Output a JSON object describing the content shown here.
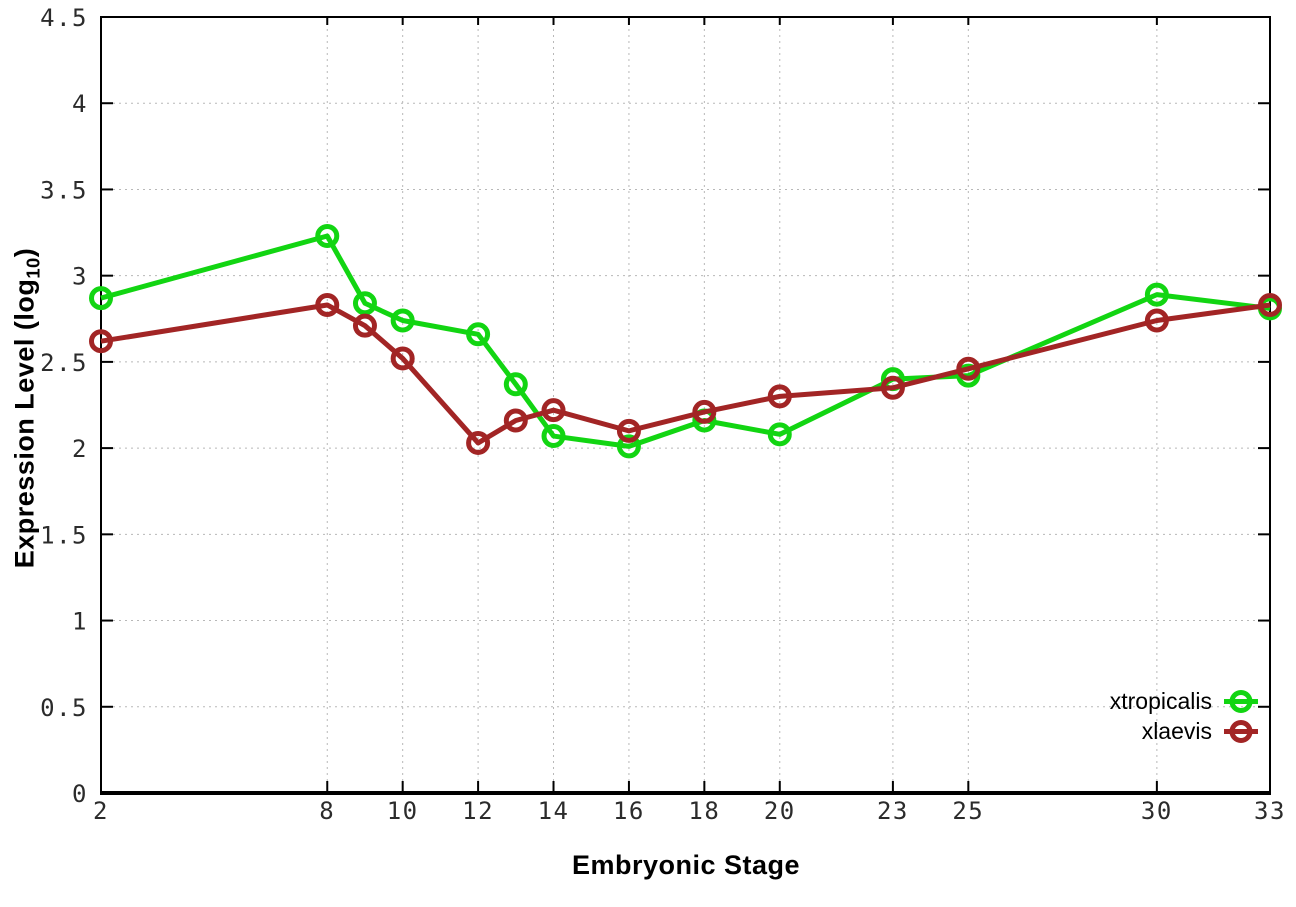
{
  "figure": {
    "xlabel": "Embryonic Stage",
    "ylabel_main": "Expression Level (log",
    "ylabel_sub": "10",
    "ylabel_close": ")"
  },
  "chart_data": {
    "type": "line",
    "title": "",
    "xlabel": "Embryonic Stage",
    "ylabel": "Expression Level (log10)",
    "x": [
      2,
      8,
      9,
      10,
      12,
      13,
      14,
      16,
      18,
      20,
      23,
      25,
      30,
      33
    ],
    "series": [
      {
        "name": "xtropicalis",
        "color": "#12d512",
        "values": [
          2.87,
          3.23,
          2.84,
          2.74,
          2.66,
          2.37,
          2.07,
          2.01,
          2.16,
          2.08,
          2.4,
          2.42,
          2.89,
          2.81
        ]
      },
      {
        "name": "xlaevis",
        "color": "#a22525",
        "values": [
          2.62,
          2.83,
          2.71,
          2.52,
          2.03,
          2.16,
          2.22,
          2.1,
          2.21,
          2.3,
          2.35,
          2.46,
          2.74,
          2.83
        ]
      }
    ],
    "xlim": [
      2,
      33
    ],
    "ylim": [
      0,
      4.5
    ],
    "x_ticks": [
      2,
      8,
      10,
      12,
      14,
      16,
      18,
      20,
      23,
      25,
      30,
      33
    ],
    "x_tick_labels": [
      "2",
      "8",
      "10",
      "12",
      "14",
      "16",
      "18",
      "20",
      "23",
      "25",
      "30",
      "33"
    ],
    "y_ticks": [
      0,
      0.5,
      1,
      1.5,
      2,
      2.5,
      3,
      3.5,
      4,
      4.5
    ],
    "y_tick_labels": [
      "0",
      "0.5",
      "1",
      "1.5",
      "2",
      "2.5",
      "3",
      "3.5",
      "4",
      "4.5"
    ],
    "grid": true,
    "grid_color": "#b8b8b8",
    "frame_color": "#000000",
    "marker": "open-circle",
    "line_width": 5,
    "marker_radius": 9.5,
    "legend_position": "inside-bottom-right"
  }
}
